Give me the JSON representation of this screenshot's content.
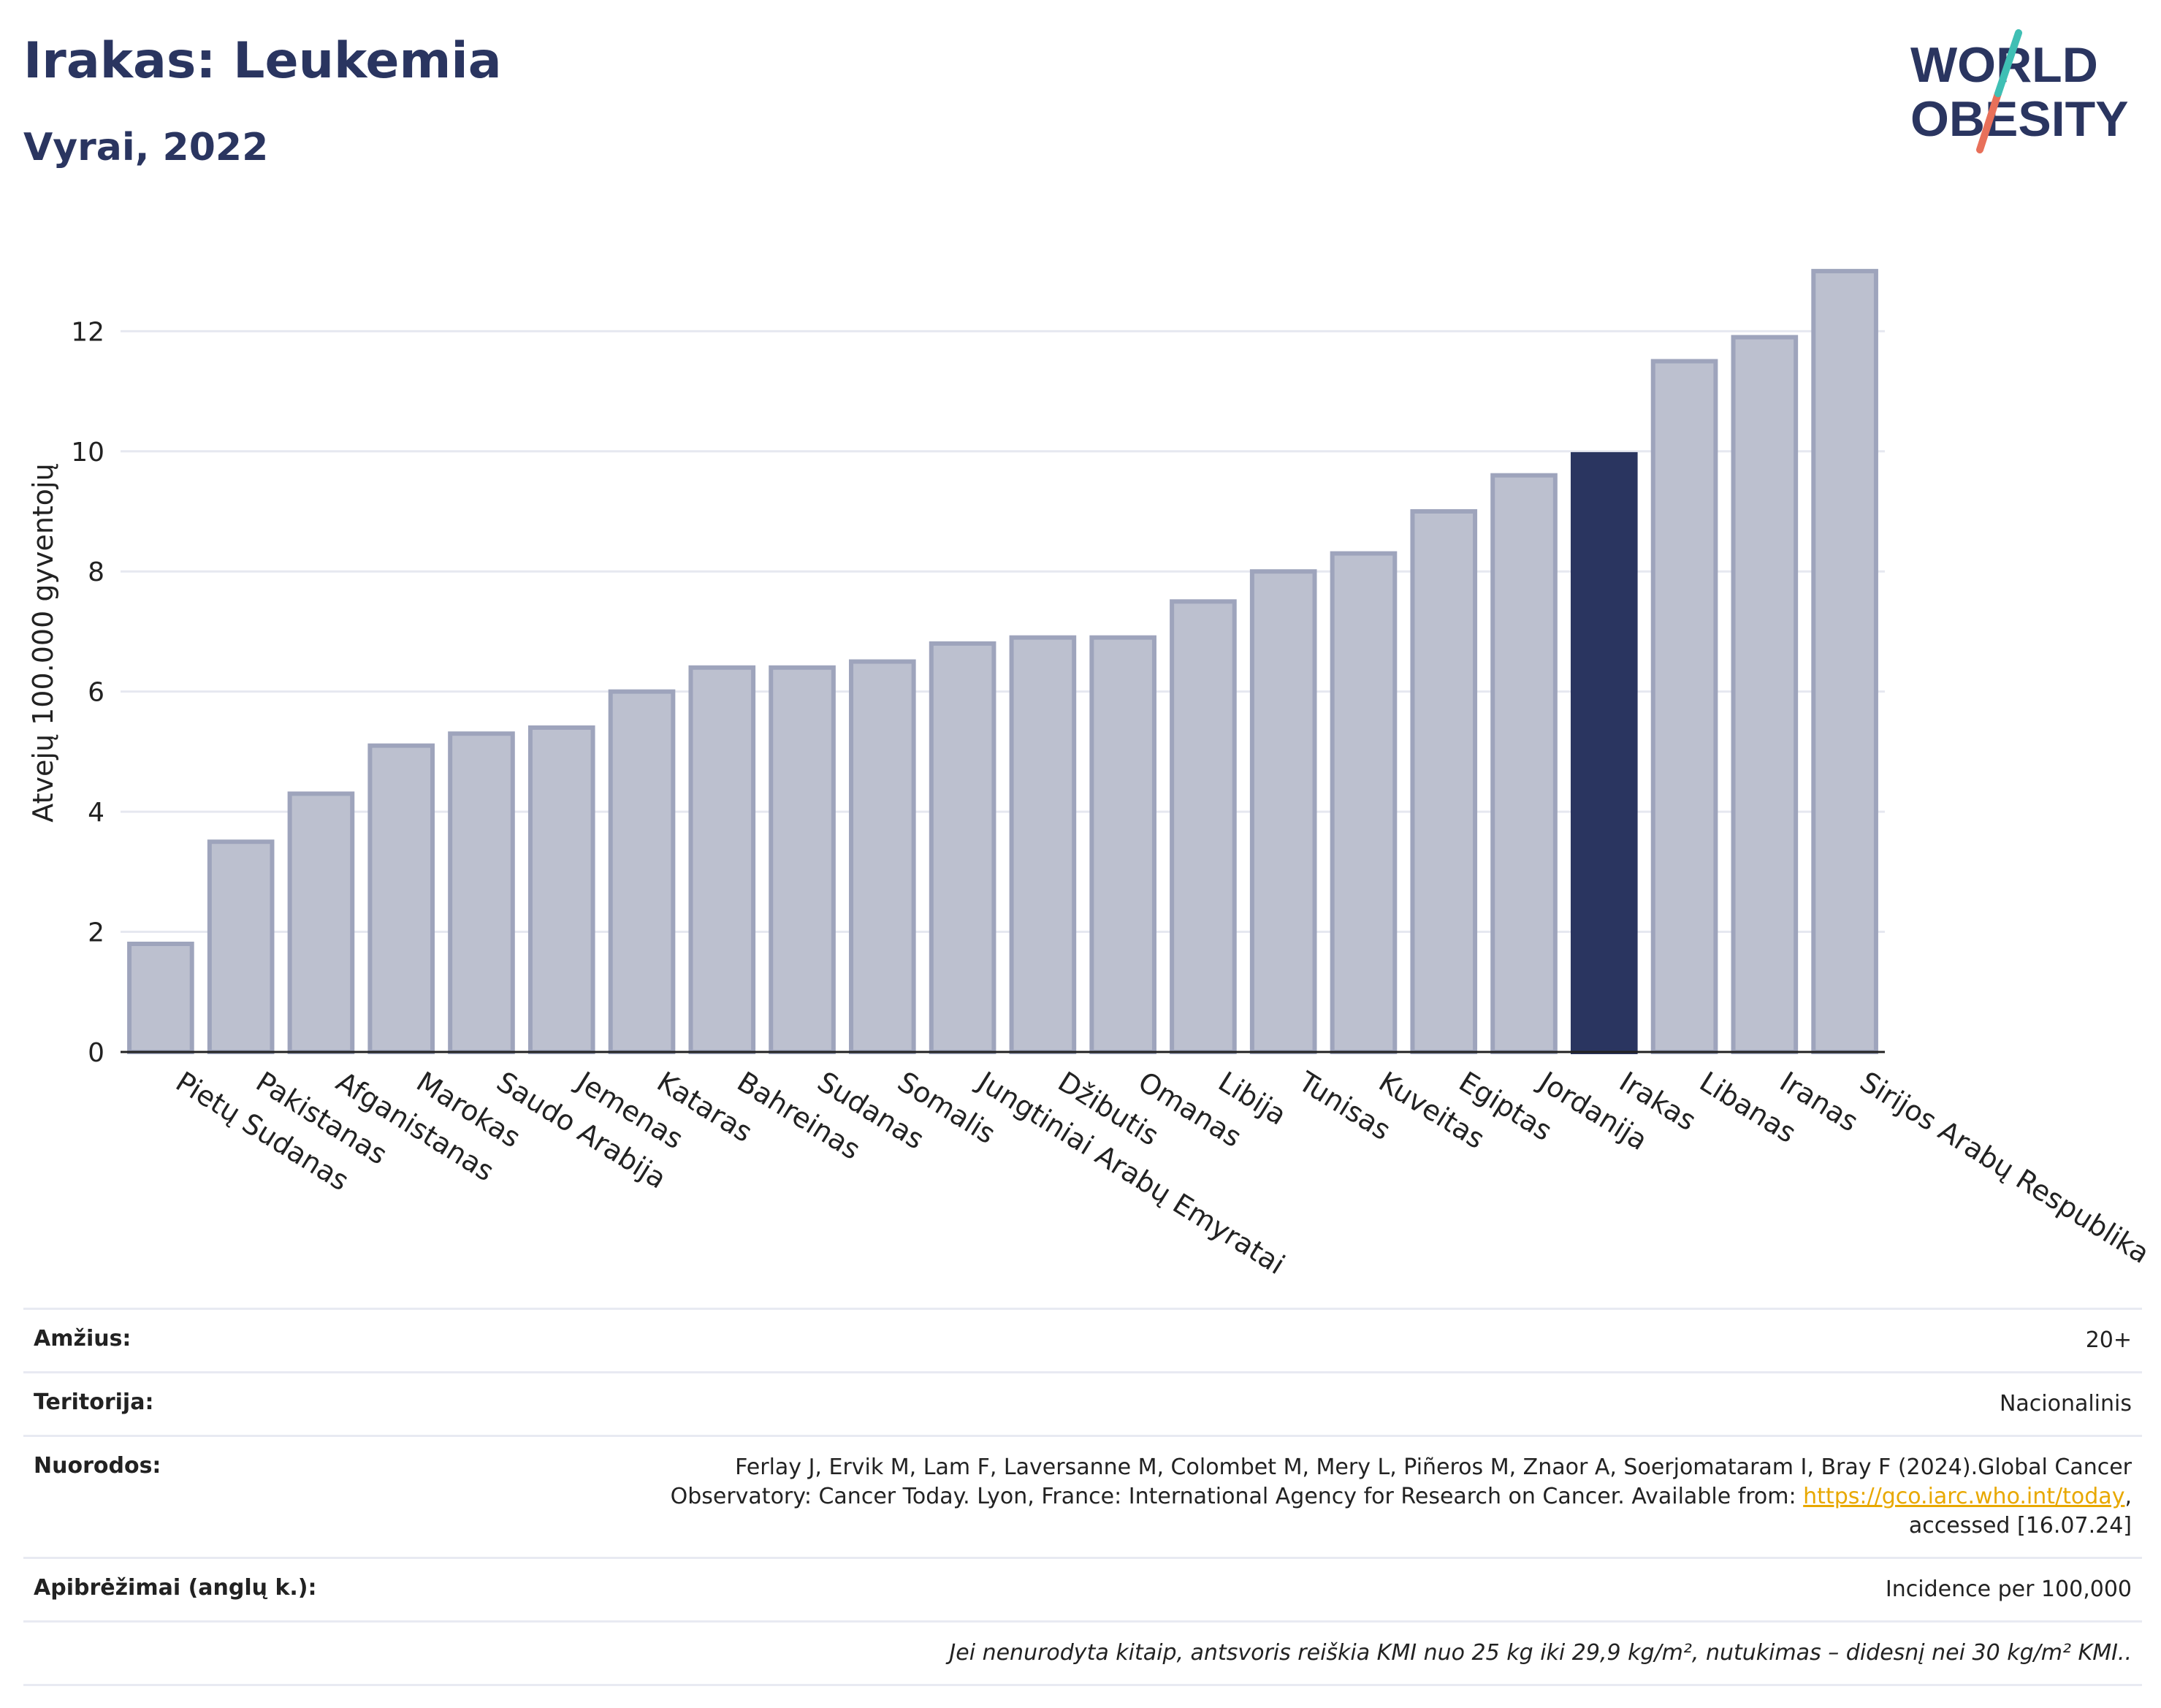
{
  "header": {
    "title": "Irakas: Leukemia",
    "subtitle": "Vyrai, 2022",
    "logo_line1": "WORLD",
    "logo_line2": "OBESITY"
  },
  "colors": {
    "highlight": "#2a3560",
    "bar_fill": "#bcc0cf",
    "bar_stroke": "#9ea4bc",
    "grid": "#e6e8f0",
    "title": "#2a3560",
    "link": "#e8a800"
  },
  "chart_data": {
    "type": "bar",
    "ylabel": "Atvejų 100.000 gyventojų",
    "ylim": [
      0,
      13.5
    ],
    "yticks": [
      0,
      2,
      4,
      6,
      8,
      10,
      12
    ],
    "grid": true,
    "highlight": "Irakas",
    "categories": [
      "Pietų Sudanas",
      "Pakistanas",
      "Afganistanas",
      "Marokas",
      "Saudo Arabija",
      "Jemenas",
      "Kataras",
      "Bahreinas",
      "Sudanas",
      "Somalis",
      "Jungtiniai Arabų Emyratai",
      "Džibutis",
      "Omanas",
      "Libija",
      "Tunisas",
      "Kuveitas",
      "Egiptas",
      "Jordanija",
      "Irakas",
      "Libanas",
      "Iranas",
      "Sirijos Arabų Respublika"
    ],
    "values": [
      1.8,
      3.5,
      4.3,
      5.1,
      5.3,
      5.4,
      6.0,
      6.4,
      6.4,
      6.5,
      6.8,
      6.9,
      6.9,
      7.5,
      8.0,
      8.3,
      9.0,
      9.6,
      9.95,
      11.5,
      11.9,
      13.0
    ]
  },
  "info": {
    "age_label": "Amžius:",
    "age_value": "20+",
    "territory_label": "Teritorija:",
    "territory_value": "Nacionalinis",
    "references_label": "Nuorodos:",
    "references_line1": "Ferlay J, Ervik M, Lam F, Laversanne M, Colombet M, Mery L, Piñeros M, Znaor A, Soerjomataram I, Bray F (2024).Global Cancer",
    "references_line2": "Observatory: Cancer Today. Lyon, France: International Agency for Research on Cancer. Available from: ",
    "references_link": "https://gco.iarc.who.int/today",
    "references_line2_end": ",",
    "references_line3": "accessed [16.07.24]",
    "definitions_label": "Apibrėžimai (anglų k.):",
    "definitions_value": "Incidence per 100,000",
    "note": "Jei nenurodyta kitaip, antsvoris reiškia KMI nuo 25 kg iki 29,9 kg/m², nutukimas – didesnį nei 30 kg/m² KMI.."
  }
}
